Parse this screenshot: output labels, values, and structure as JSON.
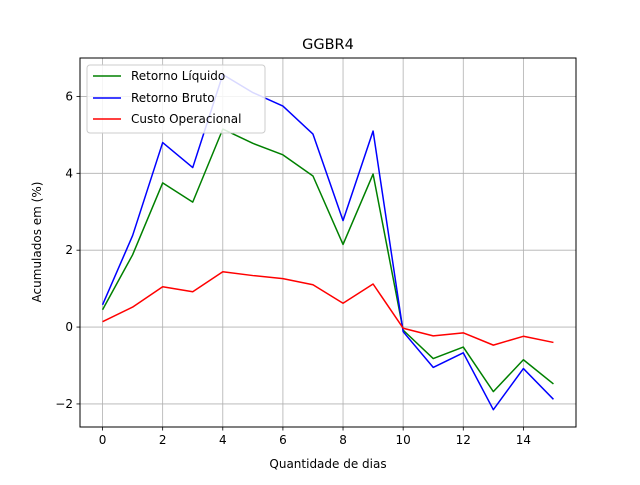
{
  "chart_data": {
    "type": "line",
    "title": "GGBR4",
    "xlabel": "Quantidade de dias",
    "ylabel": "Acumulados em (%)",
    "x": [
      0,
      1,
      2,
      3,
      4,
      5,
      6,
      7,
      8,
      9,
      10,
      11,
      12,
      13,
      14,
      15
    ],
    "xlim": [
      -0.75,
      15.75
    ],
    "ylim": [
      -2.6,
      7.0
    ],
    "xticks": [
      0,
      2,
      4,
      6,
      8,
      10,
      12,
      14
    ],
    "yticks": [
      -2,
      0,
      2,
      4,
      6
    ],
    "ytick_labels": [
      "−2",
      "0",
      "2",
      "4",
      "6"
    ],
    "grid": true,
    "legend_position": "top-left",
    "series": [
      {
        "name": "Retorno Líquido",
        "color": "#008000",
        "values": [
          0.45,
          1.88,
          3.75,
          3.25,
          5.15,
          4.78,
          4.48,
          3.93,
          2.15,
          3.98,
          -0.08,
          -0.82,
          -0.52,
          -1.68,
          -0.85,
          -1.48
        ]
      },
      {
        "name": "Retorno Bruto",
        "color": "#0000ff",
        "values": [
          0.58,
          2.38,
          4.8,
          4.15,
          6.57,
          6.1,
          5.75,
          5.02,
          2.77,
          5.1,
          -0.12,
          -1.05,
          -0.67,
          -2.15,
          -1.08,
          -1.88
        ]
      },
      {
        "name": "Custo Operacional",
        "color": "#ff0000",
        "values": [
          0.14,
          0.52,
          1.05,
          0.92,
          1.44,
          1.34,
          1.26,
          1.1,
          0.62,
          1.12,
          -0.03,
          -0.23,
          -0.15,
          -0.47,
          -0.24,
          -0.4
        ]
      }
    ]
  }
}
